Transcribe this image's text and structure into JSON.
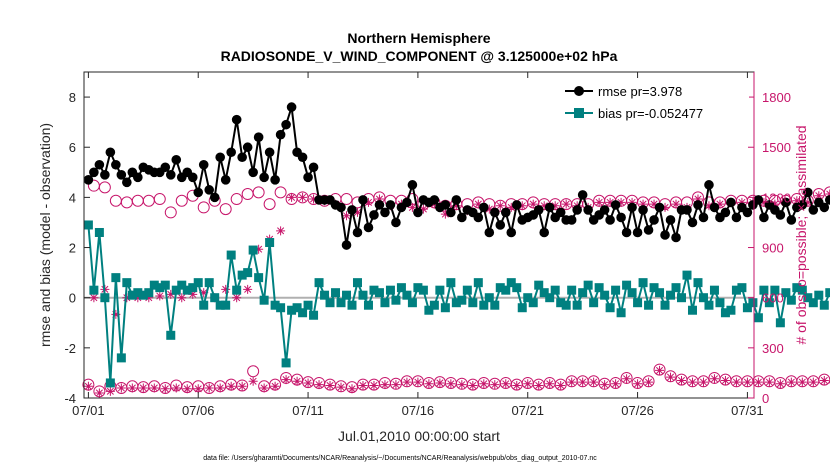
{
  "chart_data": {
    "type": "line",
    "title": "Northern Hemisphere",
    "subtitle": "RADIOSONDE_V_WIND_COMPONENT @ 3.125000e+02 hPa",
    "xlabel": "Jul.01,2010 00:00:00 start",
    "ylabel_left": "rmse and bias (model - observation)",
    "ylabel_right": "# of obs: o=possible; ×=assimilated",
    "footer": "data file: /Users/gharamti/Documents/NCAR/Reanalysis/~/Documents/NCAR/Reanalysis/webpub/obs_diag_output_2010-07.nc",
    "xlim": [
      0.8,
      31.3
    ],
    "ylim_left": [
      -4,
      9
    ],
    "ylim_right": [
      0,
      1950
    ],
    "x_ticks": [
      1,
      6,
      11,
      16,
      21,
      26,
      31
    ],
    "x_tick_labels": [
      "07/01",
      "07/06",
      "07/11",
      "07/16",
      "07/21",
      "07/26",
      "07/31"
    ],
    "yleft_ticks": [
      "-4",
      "-2",
      "0",
      "2",
      "4",
      "6",
      "8"
    ],
    "yright_ticks": [
      "0",
      "300",
      "600",
      "900",
      "1200",
      "1500",
      "1800"
    ],
    "colors": {
      "rmse": "#000000",
      "bias": "#008080",
      "obs": "#c7166b",
      "zero": "#b0b0b0",
      "axis": "#262626"
    },
    "legend": [
      "rmse pr=3.978",
      "bias pr=-0.052477"
    ],
    "legend_position": "top-right",
    "time_step_days": 0.25,
    "start_day": 1,
    "series": [
      {
        "name": "rmse",
        "axis": "left",
        "values": [
          4.7,
          5.0,
          5.3,
          4.9,
          5.8,
          5.3,
          4.9,
          4.6,
          5.0,
          4.8,
          5.2,
          5.1,
          5.0,
          5.0,
          5.2,
          4.9,
          5.5,
          4.8,
          5.0,
          4.8,
          4.2,
          5.3,
          4.3,
          4.0,
          5.6,
          4.7,
          5.8,
          7.1,
          5.6,
          6.0,
          5.0,
          6.4,
          4.8,
          5.8,
          4.7,
          6.5,
          6.9,
          7.6,
          5.8,
          5.6,
          4.8,
          5.2,
          3.9,
          3.9,
          3.9,
          3.7,
          3.6,
          2.1,
          3.5,
          2.6,
          3.9,
          2.8,
          3.3,
          3.7,
          3.4,
          3.7,
          3.0,
          3.6,
          3.8,
          4.5,
          3.4,
          3.9,
          3.8,
          3.9,
          3.6,
          3.7,
          3.4,
          3.9,
          3.2,
          3.5,
          3.4,
          3.2,
          3.6,
          2.6,
          3.4,
          2.9,
          3.4,
          2.6,
          3.7,
          3.1,
          3.2,
          3.3,
          3.5,
          2.6,
          3.6,
          3.2,
          3.4,
          3.1,
          3.1,
          3.5,
          4.1,
          3.5,
          3.1,
          3.3,
          3.5,
          3.1,
          3.7,
          3.2,
          2.6,
          3.6,
          2.6,
          3.5,
          2.7,
          3.1,
          3.6,
          2.5,
          3.1,
          2.4,
          3.5,
          3.5,
          3.0,
          3.7,
          3.2,
          4.5,
          3.6,
          3.2,
          3.4,
          3.8,
          3.2,
          3.6,
          3.4,
          3.7,
          3.9,
          3.2,
          3.7,
          3.5,
          3.3,
          3.8,
          3.1,
          3.6,
          3.7,
          4.2,
          3.5,
          3.8,
          3.6,
          3.9,
          3.5,
          4.0,
          3.5,
          4.0,
          3.6,
          4.1,
          3.4,
          3.7,
          3.5,
          3.2,
          3.6,
          4.0,
          3.7,
          3.5,
          3.8,
          4.0,
          3.6,
          3.9,
          3.4,
          3.6,
          3.4,
          4.0,
          3.7,
          3.3,
          3.7,
          4.0,
          5.9,
          4.0,
          3.6,
          3.1,
          3.7,
          4.3,
          3.5,
          3.0,
          3.4,
          3.6,
          3.4
        ]
      },
      {
        "name": "bias",
        "axis": "left",
        "values": [
          2.9,
          0.3,
          2.6,
          0.0,
          -3.4,
          0.8,
          -2.4,
          0.6,
          0.1,
          0.2,
          0.1,
          0.2,
          0.5,
          0.4,
          0.5,
          -1.5,
          0.3,
          0.5,
          0.3,
          0.4,
          0.6,
          -0.3,
          0.6,
          0.0,
          -0.3,
          -0.3,
          1.7,
          0.3,
          0.9,
          1.0,
          1.9,
          0.8,
          -0.1,
          2.2,
          -0.3,
          -0.4,
          -2.6,
          -0.5,
          -0.4,
          -0.6,
          -0.3,
          -0.7,
          0.6,
          0.1,
          -0.2,
          0.2,
          -0.2,
          0.1,
          -0.3,
          0.6,
          0.1,
          -0.3,
          0.3,
          0.2,
          -0.2,
          0.3,
          -0.1,
          0.4,
          0.1,
          -0.2,
          0.4,
          0.3,
          -0.5,
          -0.3,
          0.3,
          -0.4,
          0.6,
          -0.2,
          -0.1,
          0.3,
          -0.2,
          0.6,
          -0.3,
          0.0,
          -0.3,
          0.4,
          0.3,
          0.6,
          0.4,
          -0.4,
          0.0,
          -0.2,
          0.5,
          0.2,
          0.0,
          0.3,
          -0.2,
          -0.3,
          0.3,
          -0.3,
          0.2,
          0.5,
          -0.2,
          0.4,
          0.1,
          -0.4,
          0.3,
          -0.6,
          0.5,
          0.2,
          -0.2,
          0.6,
          -0.3,
          0.4,
          0.2,
          -0.3,
          0.1,
          0.4,
          0.0,
          0.9,
          -0.5,
          0.6,
          0.0,
          -0.3,
          0.3,
          -0.2,
          -0.6,
          -0.5,
          0.3,
          0.4,
          -0.4,
          -0.2,
          -0.8,
          0.3,
          -0.2,
          0.3,
          -1.0,
          0.2,
          -0.1,
          0.4,
          0.3,
          0.0,
          -0.2,
          0.1,
          -0.3,
          0.2,
          0.4,
          -0.9,
          0.2,
          -0.9,
          -0.3,
          0.4,
          0.0,
          -0.2,
          0.6,
          -0.6,
          0.2,
          -0.4,
          0.6,
          0.2,
          0.0,
          -0.3,
          0.2,
          -0.5,
          0.5,
          0.4,
          -0.2,
          0.1,
          -0.6,
          0.4,
          -0.4,
          -1.8,
          0.4,
          0.2,
          -0.3,
          0.4,
          0.2,
          -0.3,
          0.5,
          0.0,
          -0.2
        ]
      },
      {
        "name": "obs possible",
        "axis": "right",
        "marker": "o",
        "values": [
          80,
          1270,
          40,
          1260,
          70,
          1180,
          60,
          1170,
          70,
          1180,
          65,
          1180,
          70,
          1190,
          60,
          1110,
          75,
          1180,
          65,
          1210,
          70,
          1140,
          60,
          1180,
          70,
          1130,
          80,
          1190,
          75,
          1220,
          160,
          1230,
          70,
          1160,
          80,
          1230,
          120,
          1190,
          110,
          1200,
          95,
          1190,
          90,
          1180,
          80,
          1190,
          70,
          1190,
          65,
          1170,
          80,
          1190,
          80,
          1200,
          90,
          1180,
          85,
          1180,
          100,
          1190,
          100,
          1160,
          90,
          1170,
          95,
          1150,
          90,
          1160,
          85,
          1160,
          80,
          1170,
          90,
          1160,
          85,
          1150,
          90,
          1160,
          80,
          1160,
          90,
          1170,
          80,
          1160,
          90,
          1160,
          80,
          1160,
          100,
          1160,
          100,
          1160,
          100,
          1180,
          85,
          1180,
          90,
          1180,
          120,
          1180,
          90,
          1170,
          100,
          1170,
          170,
          1160,
          130,
          1170,
          110,
          1170,
          100,
          1200,
          100,
          1170,
          120,
          1170,
          110,
          1180,
          100,
          1180,
          100,
          1180,
          100,
          1180,
          100,
          1180,
          90,
          1180,
          100,
          1190,
          100,
          1180,
          100,
          1220,
          110,
          1230,
          100,
          1230,
          110,
          1200,
          90,
          1200,
          100,
          1190,
          100,
          1200,
          100,
          1170,
          80,
          1210,
          100,
          1200,
          80,
          1190,
          100,
          1200,
          80,
          1180,
          90,
          1170,
          100,
          1180,
          90
        ]
      },
      {
        "name": "obs assimilated",
        "axis": "right",
        "marker": "x",
        "values": [
          70,
          600,
          30,
          650,
          40,
          500,
          60,
          600,
          60,
          600,
          60,
          600,
          60,
          610,
          55,
          620,
          60,
          600,
          55,
          620,
          55,
          630,
          60,
          600,
          60,
          650,
          70,
          600,
          70,
          650,
          100,
          890,
          60,
          950,
          70,
          1000,
          110,
          1200,
          100,
          1200,
          90,
          1190,
          80,
          1180,
          75,
          1160,
          65,
          1090,
          55,
          1110,
          75,
          1170,
          75,
          1190,
          80,
          1150,
          80,
          1160,
          95,
          1140,
          95,
          1130,
          85,
          1160,
          90,
          1100,
          85,
          1150,
          80,
          1120,
          75,
          1160,
          85,
          1130,
          80,
          1150,
          85,
          1140,
          75,
          1150,
          85,
          1160,
          75,
          1150,
          85,
          1150,
          75,
          1160,
          95,
          1150,
          95,
          1140,
          95,
          1170,
          80,
          1170,
          85,
          1170,
          115,
          1170,
          85,
          1160,
          95,
          1160,
          165,
          1140,
          125,
          1160,
          105,
          1140,
          95,
          1190,
          95,
          1150,
          115,
          1160,
          105,
          1170,
          95,
          1170,
          95,
          1170,
          95,
          1170,
          95,
          1160,
          85,
          1170,
          95,
          1180,
          95,
          1170,
          95,
          1210,
          105,
          1220,
          95,
          1200,
          105,
          1190,
          85,
          1190,
          95,
          1180,
          95,
          1190,
          95,
          1150,
          75,
          1180,
          95,
          1160,
          75,
          1170,
          95,
          1180,
          75,
          1160,
          85,
          1150,
          95,
          1160,
          85
        ]
      }
    ]
  }
}
